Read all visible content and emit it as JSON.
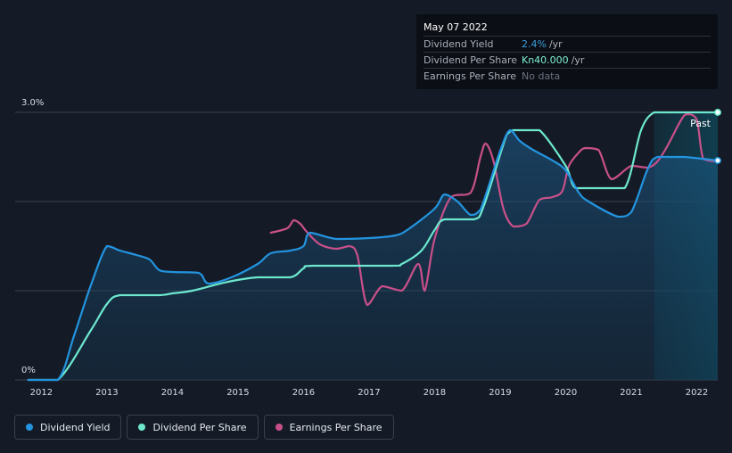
{
  "colors": {
    "background": "#151b26",
    "dividend_yield": "#2394df",
    "dividend_per_share": "#6de8cf",
    "earnings_per_share": "#c8508a",
    "grid": "#3a414d"
  },
  "tooltip": {
    "date": "May 07 2022",
    "rows": [
      {
        "label": "Dividend Yield",
        "value": "2.4%",
        "unit": "/yr"
      },
      {
        "label": "Dividend Per Share",
        "value": "Kn40.000",
        "unit": "/yr"
      },
      {
        "label": "Earnings Per Share",
        "value": "No data",
        "unit": ""
      }
    ]
  },
  "past_label": "Past",
  "legend": [
    {
      "label": "Dividend Yield",
      "color": "#2394df"
    },
    {
      "label": "Dividend Per Share",
      "color": "#6de8cf"
    },
    {
      "label": "Earnings Per Share",
      "color": "#c8508a"
    }
  ],
  "chart_data": {
    "type": "line",
    "title": "",
    "xlabel": "",
    "ylabel": "",
    "x_ticks": [
      "2012",
      "2013",
      "2014",
      "2015",
      "2016",
      "2017",
      "2018",
      "2019",
      "2020",
      "2021",
      "2022"
    ],
    "y_ticks": [
      "0%",
      "3.0%"
    ],
    "xlim": [
      2011.6,
      2022.32
    ],
    "ylim": [
      0,
      3.0
    ],
    "grid": true,
    "legend_position": "bottom-left",
    "series": [
      {
        "name": "Dividend Yield",
        "unit": "%",
        "x": [
          2011.8,
          2012.25,
          2012.5,
          2012.75,
          2013.0,
          2013.2,
          2013.45,
          2013.65,
          2013.8,
          2014.0,
          2014.4,
          2014.55,
          2014.9,
          2015.3,
          2015.5,
          2015.8,
          2016.0,
          2016.1,
          2016.5,
          2017.0,
          2017.4,
          2017.6,
          2018.0,
          2018.15,
          2018.35,
          2018.55,
          2018.7,
          2019.0,
          2019.15,
          2019.3,
          2019.5,
          2019.8,
          2020.0,
          2020.2,
          2020.35,
          2020.8,
          2021.0,
          2021.25,
          2021.4,
          2021.8,
          2022.32
        ],
        "y": [
          0,
          0,
          0.5,
          1.05,
          1.5,
          1.45,
          1.4,
          1.35,
          1.23,
          1.21,
          1.2,
          1.08,
          1.15,
          1.3,
          1.42,
          1.45,
          1.5,
          1.65,
          1.58,
          1.59,
          1.62,
          1.69,
          1.92,
          2.08,
          2.0,
          1.85,
          1.91,
          2.57,
          2.8,
          2.68,
          2.58,
          2.46,
          2.35,
          2.1,
          2.0,
          1.83,
          1.88,
          2.36,
          2.5,
          2.5,
          2.46
        ]
      },
      {
        "name": "Dividend Per Share",
        "unit": "Kn",
        "x": [
          2011.8,
          2012.25,
          2012.75,
          2013.0,
          2013.2,
          2013.8,
          2014.0,
          2014.3,
          2014.85,
          2015.3,
          2015.8,
          2016.0,
          2016.15,
          2017.35,
          2017.5,
          2017.8,
          2018.0,
          2018.15,
          2018.6,
          2018.75,
          2019.1,
          2019.2,
          2019.35,
          2019.6,
          2020.0,
          2020.15,
          2020.5,
          2020.9,
          2021.15,
          2021.35,
          2021.6,
          2022.32
        ],
        "y": [
          0,
          0,
          0.55,
          0.85,
          0.95,
          0.95,
          0.97,
          1.0,
          1.1,
          1.15,
          1.15,
          1.25,
          1.28,
          1.28,
          1.3,
          1.45,
          1.68,
          1.8,
          1.8,
          1.95,
          2.75,
          2.8,
          2.8,
          2.8,
          2.4,
          2.15,
          2.15,
          2.15,
          2.8,
          3.0,
          3.0,
          3.0
        ]
      },
      {
        "name": "Earnings Per Share",
        "unit": "Kn",
        "x": [
          2015.5,
          2015.75,
          2015.85,
          2015.95,
          2016.05,
          2016.25,
          2016.5,
          2016.7,
          2016.82,
          2016.97,
          2017.2,
          2017.5,
          2017.75,
          2017.85,
          2018.0,
          2018.25,
          2018.55,
          2018.7,
          2018.78,
          2018.9,
          2019.05,
          2019.2,
          2019.4,
          2019.6,
          2019.8,
          2019.95,
          2020.05,
          2020.2,
          2020.3,
          2020.5,
          2020.7,
          2021.0,
          2021.25,
          2021.4,
          2021.55,
          2021.75,
          2021.85,
          2022.0,
          2022.1,
          2022.32
        ],
        "y": [
          1.65,
          1.7,
          1.79,
          1.75,
          1.66,
          1.52,
          1.47,
          1.5,
          1.4,
          0.84,
          1.05,
          1.0,
          1.3,
          1.0,
          1.58,
          2.05,
          2.1,
          2.5,
          2.65,
          2.45,
          1.92,
          1.72,
          1.75,
          2.02,
          2.05,
          2.12,
          2.4,
          2.55,
          2.6,
          2.58,
          2.25,
          2.4,
          2.38,
          2.45,
          2.62,
          2.9,
          2.98,
          2.92,
          2.48,
          2.45
        ]
      }
    ]
  }
}
